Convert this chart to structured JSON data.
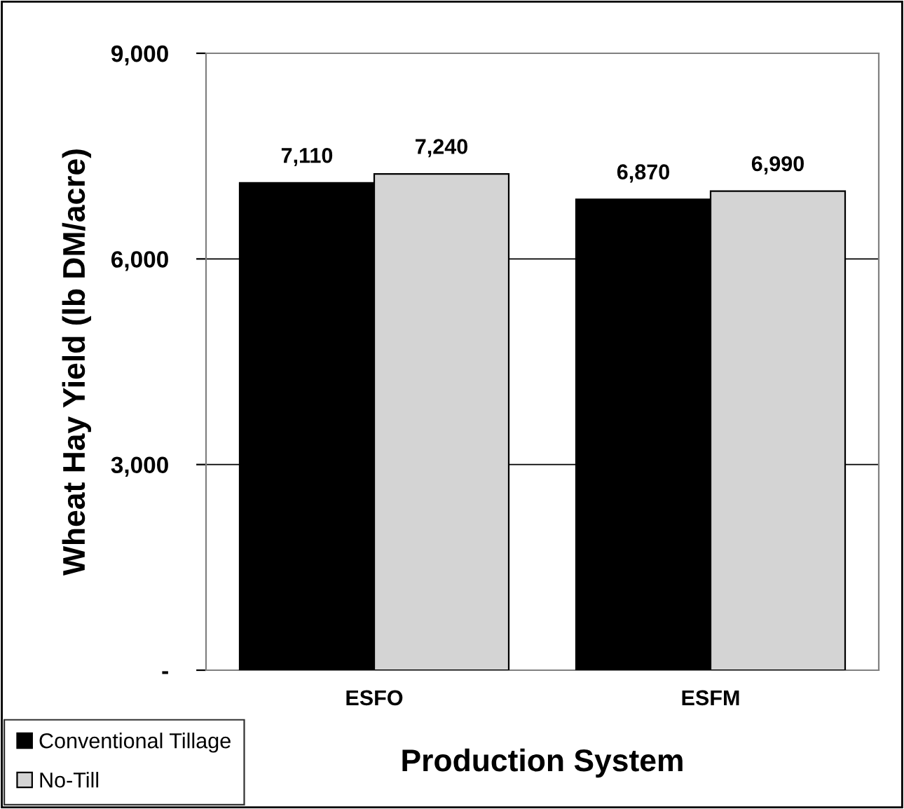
{
  "chart_data": {
    "type": "bar",
    "xlabel": "Production System",
    "ylabel": "Wheat Hay Yield (lb DM/acre)",
    "categories": [
      "ESFO",
      "ESFM"
    ],
    "series": [
      {
        "name": "Conventional Tillage",
        "color": "#000000",
        "values": [
          7110,
          6870
        ]
      },
      {
        "name": "No-Till",
        "color": "#d4d4d4",
        "values": [
          7240,
          6990
        ]
      }
    ],
    "value_labels": [
      [
        "7,110",
        "6,870"
      ],
      [
        "7,240",
        "6,990"
      ]
    ],
    "ylim": [
      0,
      9000
    ],
    "yticks": [
      {
        "value": 0,
        "label": "-"
      },
      {
        "value": 3000,
        "label": "3,000"
      },
      {
        "value": 6000,
        "label": "6,000"
      },
      {
        "value": 9000,
        "label": "9,000"
      }
    ],
    "grid": "y",
    "legend": "bottom left"
  }
}
